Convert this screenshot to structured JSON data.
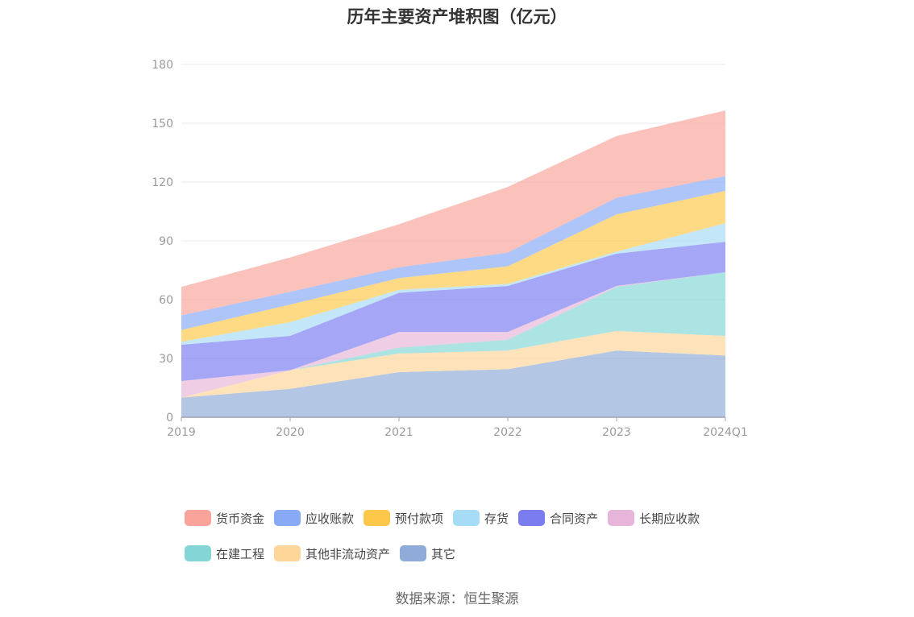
{
  "chart_data": {
    "type": "area",
    "stacked": true,
    "title": "历年主要资产堆积图（亿元）",
    "x": [
      "2019",
      "2020",
      "2021",
      "2022",
      "2023",
      "2024Q1"
    ],
    "ylim": [
      0,
      180
    ],
    "yticks": [
      0,
      30,
      60,
      90,
      120,
      150,
      180
    ],
    "grid": true,
    "legend_position": "bottom",
    "series": [
      {
        "name": "其它",
        "color": "#8fabd7",
        "values": [
          10,
          14.5,
          23,
          24.5,
          34,
          31.5
        ]
      },
      {
        "name": "其他非流动资产",
        "color": "#fed69a",
        "values": [
          0,
          9.5,
          9.5,
          9.5,
          10,
          10
        ]
      },
      {
        "name": "在建工程",
        "color": "#84d6d6",
        "values": [
          0,
          0,
          3,
          5.5,
          22.5,
          32.5
        ]
      },
      {
        "name": "长期应收款",
        "color": "#e6b5d9",
        "values": [
          8.5,
          0,
          8,
          4,
          0.5,
          0
        ]
      },
      {
        "name": "合同资产",
        "color": "#7b7cf0",
        "values": [
          18.5,
          17.5,
          20,
          23.5,
          16.5,
          15.5
        ]
      },
      {
        "name": "存货",
        "color": "#a6dcf5",
        "values": [
          1.5,
          7,
          1.5,
          1,
          1,
          9.5
        ]
      },
      {
        "name": "预付款项",
        "color": "#fdc84a",
        "values": [
          6,
          9,
          6,
          9,
          19,
          16.5
        ]
      },
      {
        "name": "应收账款",
        "color": "#87a9f6",
        "values": [
          7.5,
          6.5,
          5.5,
          7,
          8.5,
          7.5
        ]
      },
      {
        "name": "货币资金",
        "color": "#f9a39b",
        "values": [
          14.5,
          17.5,
          22,
          33.5,
          31.5,
          33.5
        ]
      }
    ]
  },
  "legend_order": [
    {
      "name": "货币资金",
      "color": "#f9a39b"
    },
    {
      "name": "应收账款",
      "color": "#87a9f6"
    },
    {
      "name": "预付款项",
      "color": "#fdc84a"
    },
    {
      "name": "存货",
      "color": "#a6dcf5"
    },
    {
      "name": "合同资产",
      "color": "#7b7cf0"
    },
    {
      "name": "长期应收款",
      "color": "#e6b5d9"
    },
    {
      "name": "在建工程",
      "color": "#84d6d6"
    },
    {
      "name": "其他非流动资产",
      "color": "#fed69a"
    },
    {
      "name": "其它",
      "color": "#8fabd7"
    }
  ],
  "source": "数据来源：恒生聚源"
}
